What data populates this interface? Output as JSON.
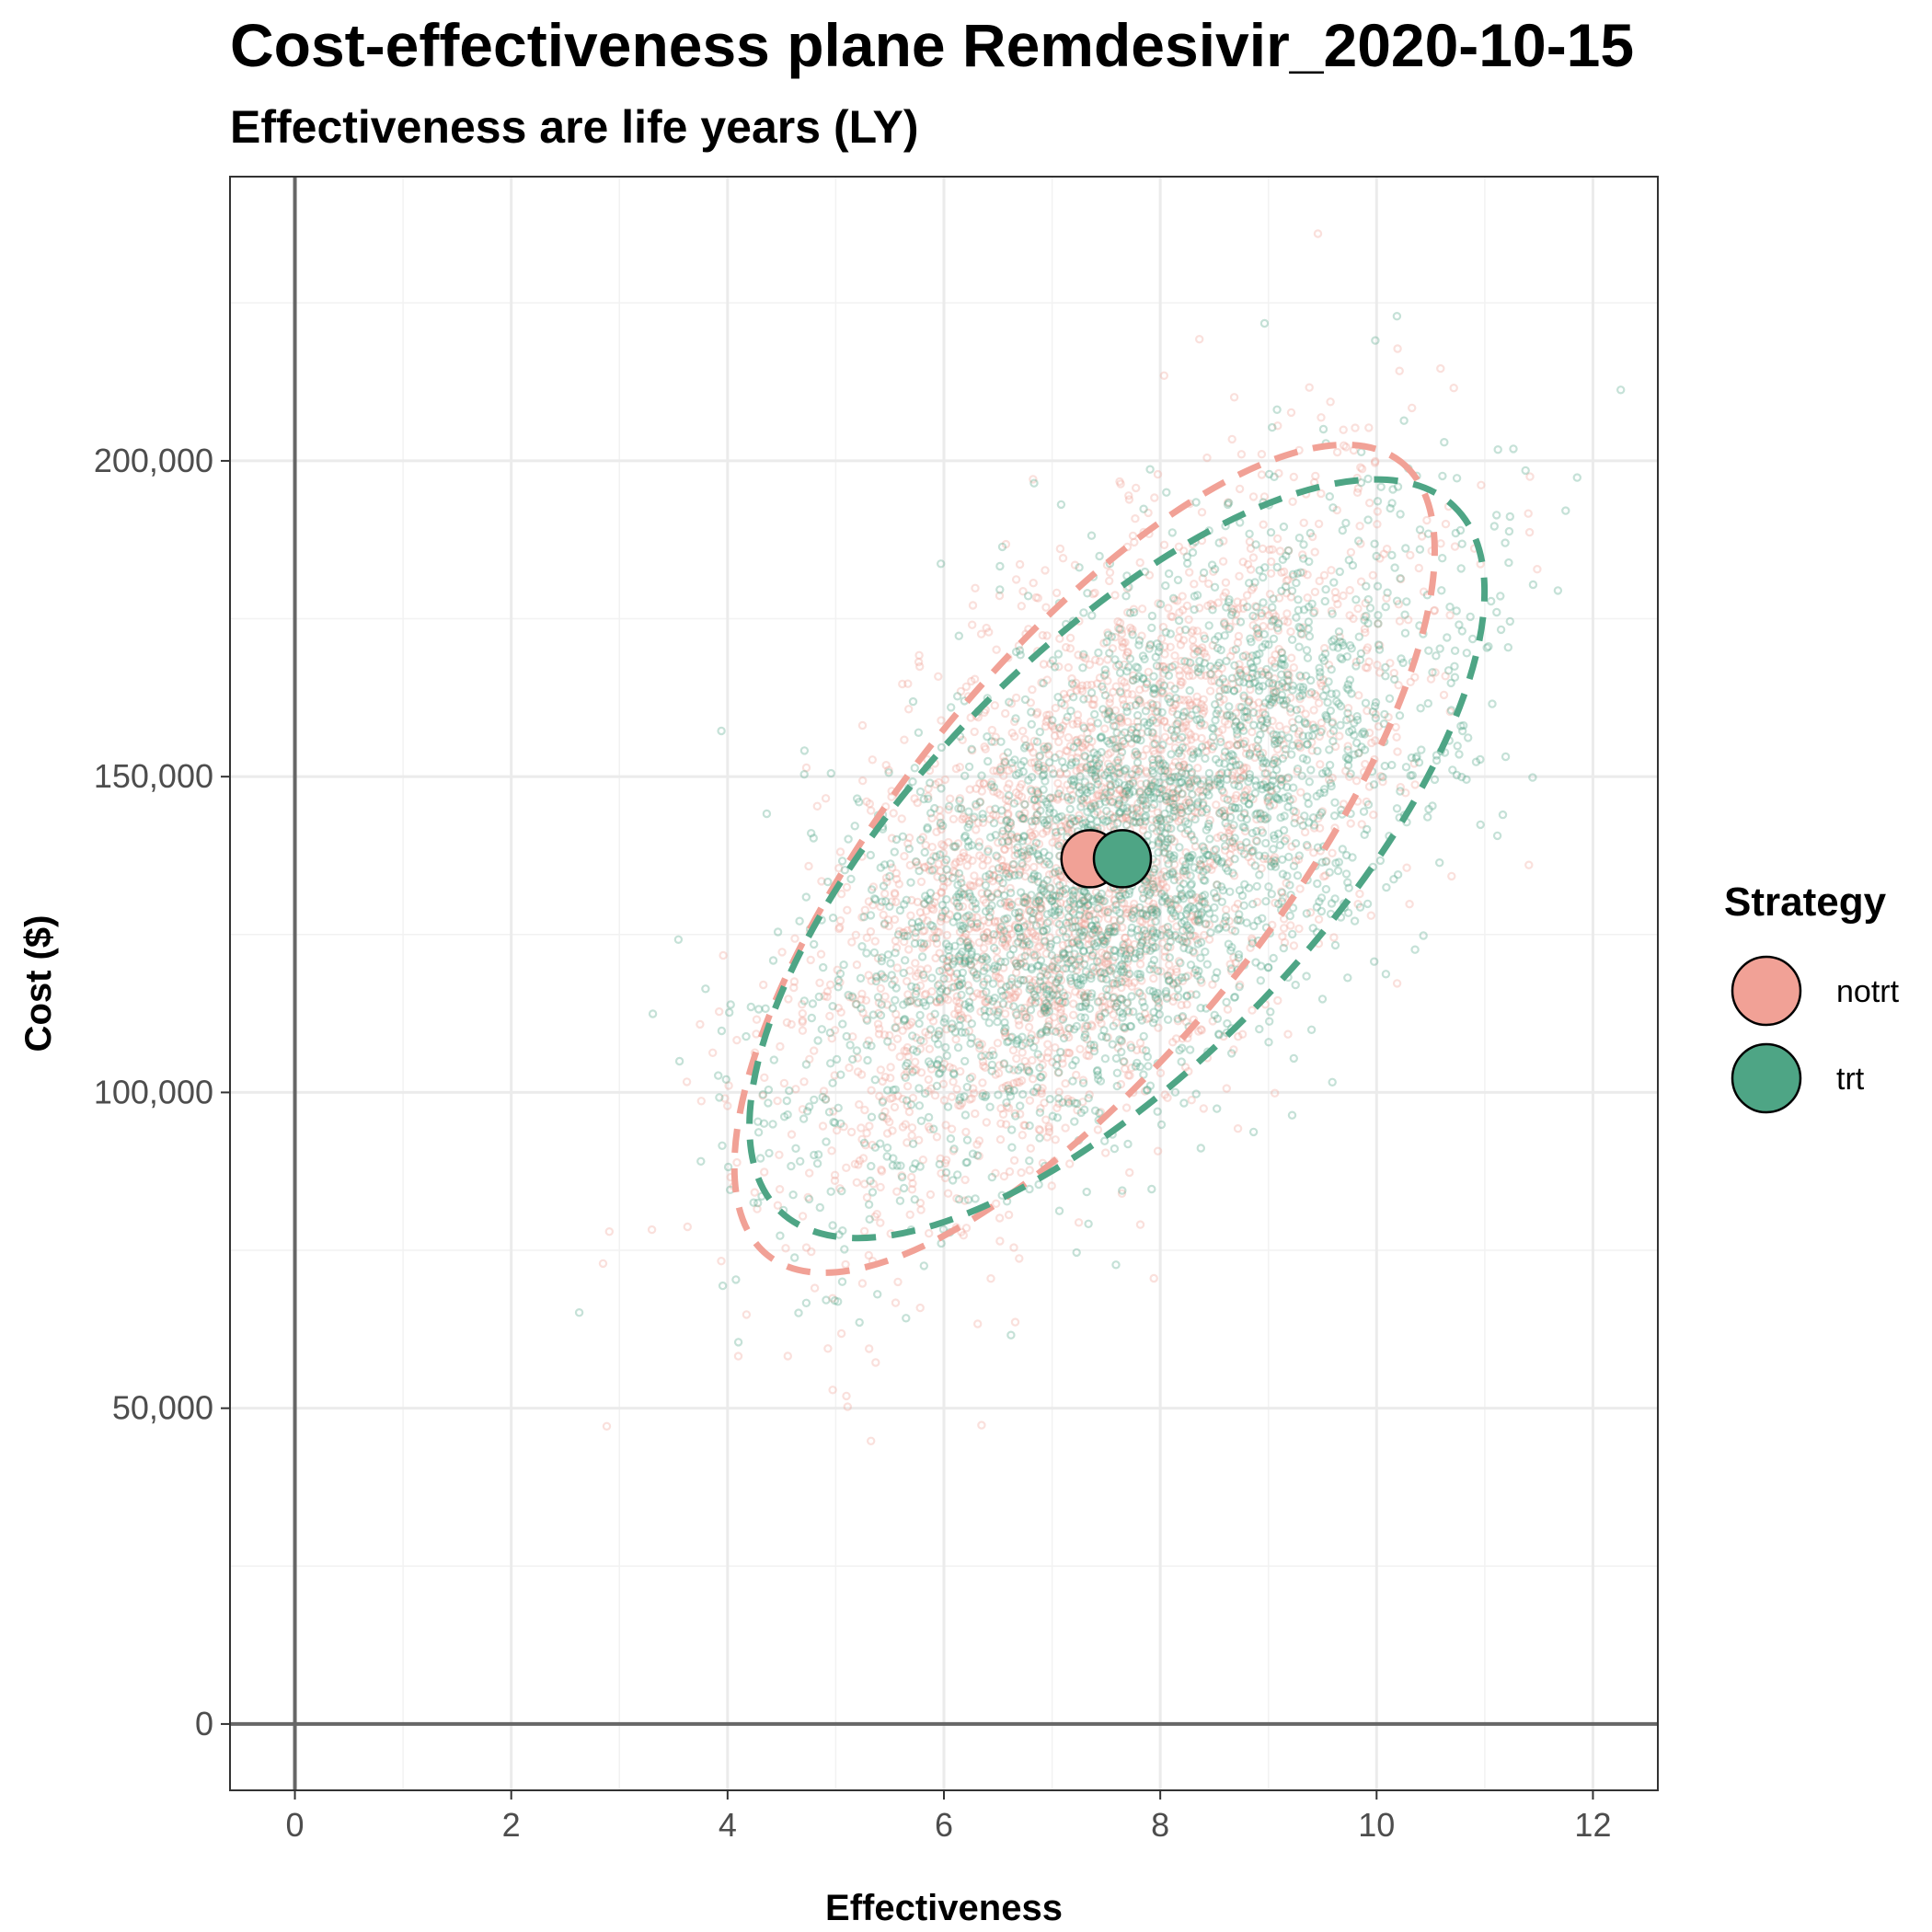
{
  "chart_data": {
    "type": "scatter",
    "title": "Cost-effectiveness plane Remdesivir_2020-10-15",
    "subtitle": "Effectiveness are life years (LY)",
    "xlabel": "Effectiveness",
    "ylabel": "Cost ($)",
    "xlim": [
      -0.6,
      12.6
    ],
    "ylim": [
      -10500,
      245000
    ],
    "x_ticks": [
      0,
      2,
      4,
      6,
      8,
      10,
      12
    ],
    "x_tick_labels": [
      "0",
      "2",
      "4",
      "6",
      "8",
      "10",
      "12"
    ],
    "y_ticks": [
      0,
      50000,
      100000,
      150000,
      200000
    ],
    "y_tick_labels": [
      "0",
      "50,000",
      "100,000",
      "150,000",
      "200,000"
    ],
    "grid": true,
    "reference_lines": {
      "x": 0,
      "y": 0
    },
    "legend": {
      "title": "Strategy",
      "position": "right"
    },
    "series": [
      {
        "name": "notrt",
        "color": "#F1A196",
        "mean": {
          "x": 7.35,
          "y": 137000
        },
        "cloud": {
          "x_mean": 7.35,
          "x_sd": 1.3,
          "y_mean": 137000,
          "y_sd": 26500,
          "correlation": 0.6,
          "n_points": 2600
        },
        "ellipse_95": {
          "center": {
            "x": 7.3,
            "y": 137000
          },
          "x_min": 4.2,
          "x_max": 10.5,
          "y_min": 70000,
          "y_max": 205000
        }
      },
      {
        "name": "trt",
        "color": "#4EA585",
        "mean": {
          "x": 7.65,
          "y": 137000
        },
        "cloud": {
          "x_mean": 7.65,
          "x_sd": 1.45,
          "y_mean": 137000,
          "y_sd": 25000,
          "correlation": 0.62,
          "n_points": 2600
        },
        "ellipse_95": {
          "center": {
            "x": 7.6,
            "y": 137000
          },
          "x_min": 4.3,
          "x_max": 11.0,
          "y_min": 77000,
          "y_max": 197000
        }
      }
    ]
  }
}
